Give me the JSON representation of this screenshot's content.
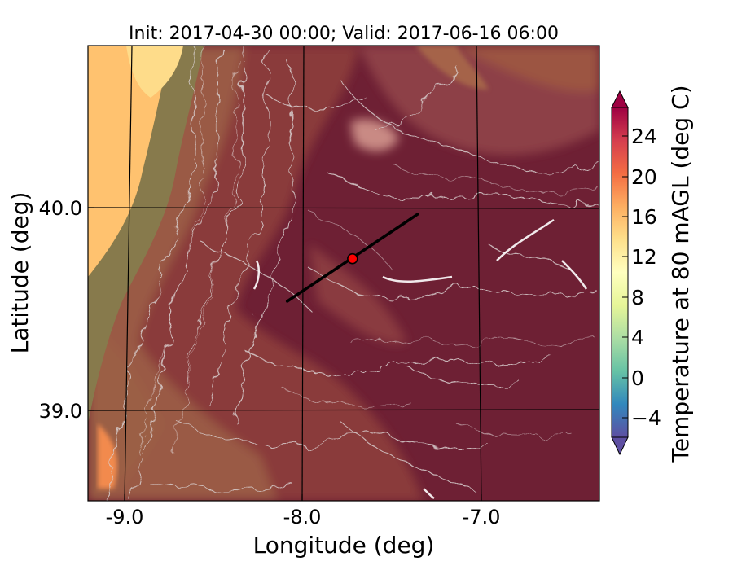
{
  "figure": {
    "title": "Init: 2017-04-30 00:00; Valid: 2017-06-16 06:00"
  },
  "map": {
    "xlabel": "Longitude (deg)",
    "ylabel": "Latitude (deg)",
    "x_ticks": [
      "-9.0",
      "-8.0",
      "-7.0"
    ],
    "y_ticks": [
      "40.0",
      "39.0"
    ],
    "x_range": [
      -9.25,
      -6.35
    ],
    "y_range": [
      38.45,
      40.8
    ],
    "grid": true,
    "transect": {
      "start": {
        "lon": -8.12,
        "lat": 39.48
      },
      "end": {
        "lon": -7.38,
        "lat": 39.93
      },
      "color": "#000000"
    },
    "marker": {
      "lon": -7.75,
      "lat": 39.7,
      "color": "#ff0000"
    }
  },
  "colorbar": {
    "label": "Temperature at 80 mAGL (deg C)",
    "ticks": [
      "24",
      "20",
      "16",
      "12",
      "8",
      "4",
      "0",
      "−4"
    ],
    "range": [
      -6,
      28
    ],
    "colors_low_to_high": [
      "#5e4fa2",
      "#3288bd",
      "#66c2a5",
      "#abdda4",
      "#e6f598",
      "#ffffbf",
      "#fee08b",
      "#fdae61",
      "#f46d43",
      "#d53e4f",
      "#9e0142"
    ]
  }
}
